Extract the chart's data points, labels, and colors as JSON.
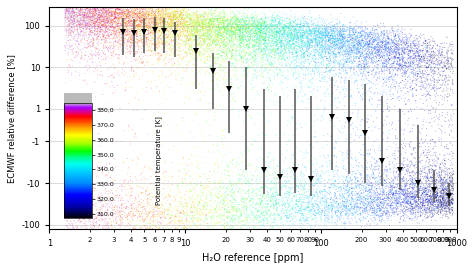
{
  "title": "",
  "xlabel": "H₂O reference [ppm]",
  "ylabel": "ECMWF relative difference [%]",
  "colorbar_label": "Potential temperature [K]",
  "colorbar_ticks": [
    310.0,
    320.0,
    330.0,
    340.0,
    350.0,
    360.0,
    370.0,
    380.0
  ],
  "temp_min": 307,
  "temp_max": 385,
  "xlim": [
    1,
    1000
  ],
  "background": "#ffffff",
  "scatter_seed": 42,
  "n_points": 25000,
  "cmap_colors": [
    [
      0.0,
      "#000000"
    ],
    [
      0.1,
      "#0000aa"
    ],
    [
      0.2,
      "#0000ff"
    ],
    [
      0.3,
      "#0088ff"
    ],
    [
      0.4,
      "#00ccff"
    ],
    [
      0.47,
      "#00ffee"
    ],
    [
      0.53,
      "#00ff88"
    ],
    [
      0.58,
      "#00ff00"
    ],
    [
      0.65,
      "#aaff00"
    ],
    [
      0.72,
      "#ffff00"
    ],
    [
      0.78,
      "#ffaa00"
    ],
    [
      0.83,
      "#ff5500"
    ],
    [
      0.88,
      "#ff0000"
    ],
    [
      0.92,
      "#dd0088"
    ],
    [
      0.96,
      "#aa00ff"
    ],
    [
      1.0,
      "#cccccc"
    ]
  ],
  "median_x": [
    3.5,
    4.2,
    5.0,
    6.0,
    7.0,
    8.5,
    12.0,
    16.0,
    21.0,
    28.0,
    38.0,
    50.0,
    65.0,
    85.0,
    120.0,
    160.0,
    210.0,
    280.0,
    380.0,
    520.0,
    680.0,
    880.0
  ],
  "median_y": [
    70,
    65,
    72,
    80,
    75,
    65,
    25,
    8,
    3,
    1,
    -5,
    -7,
    -5,
    -8,
    0.5,
    0.3,
    -0.5,
    -3,
    -5,
    -10,
    -15,
    -20
  ],
  "q25_y": [
    20,
    18,
    22,
    25,
    22,
    18,
    3,
    1,
    -0.5,
    -5,
    -18,
    -20,
    -17,
    -20,
    -5,
    -6,
    -10,
    -12,
    -15,
    -23,
    -28,
    -35
  ],
  "q75_y": [
    150,
    140,
    155,
    165,
    150,
    120,
    60,
    22,
    14,
    10,
    3,
    2,
    3,
    2,
    6,
    5,
    4,
    2,
    1,
    0,
    -5,
    -10
  ]
}
